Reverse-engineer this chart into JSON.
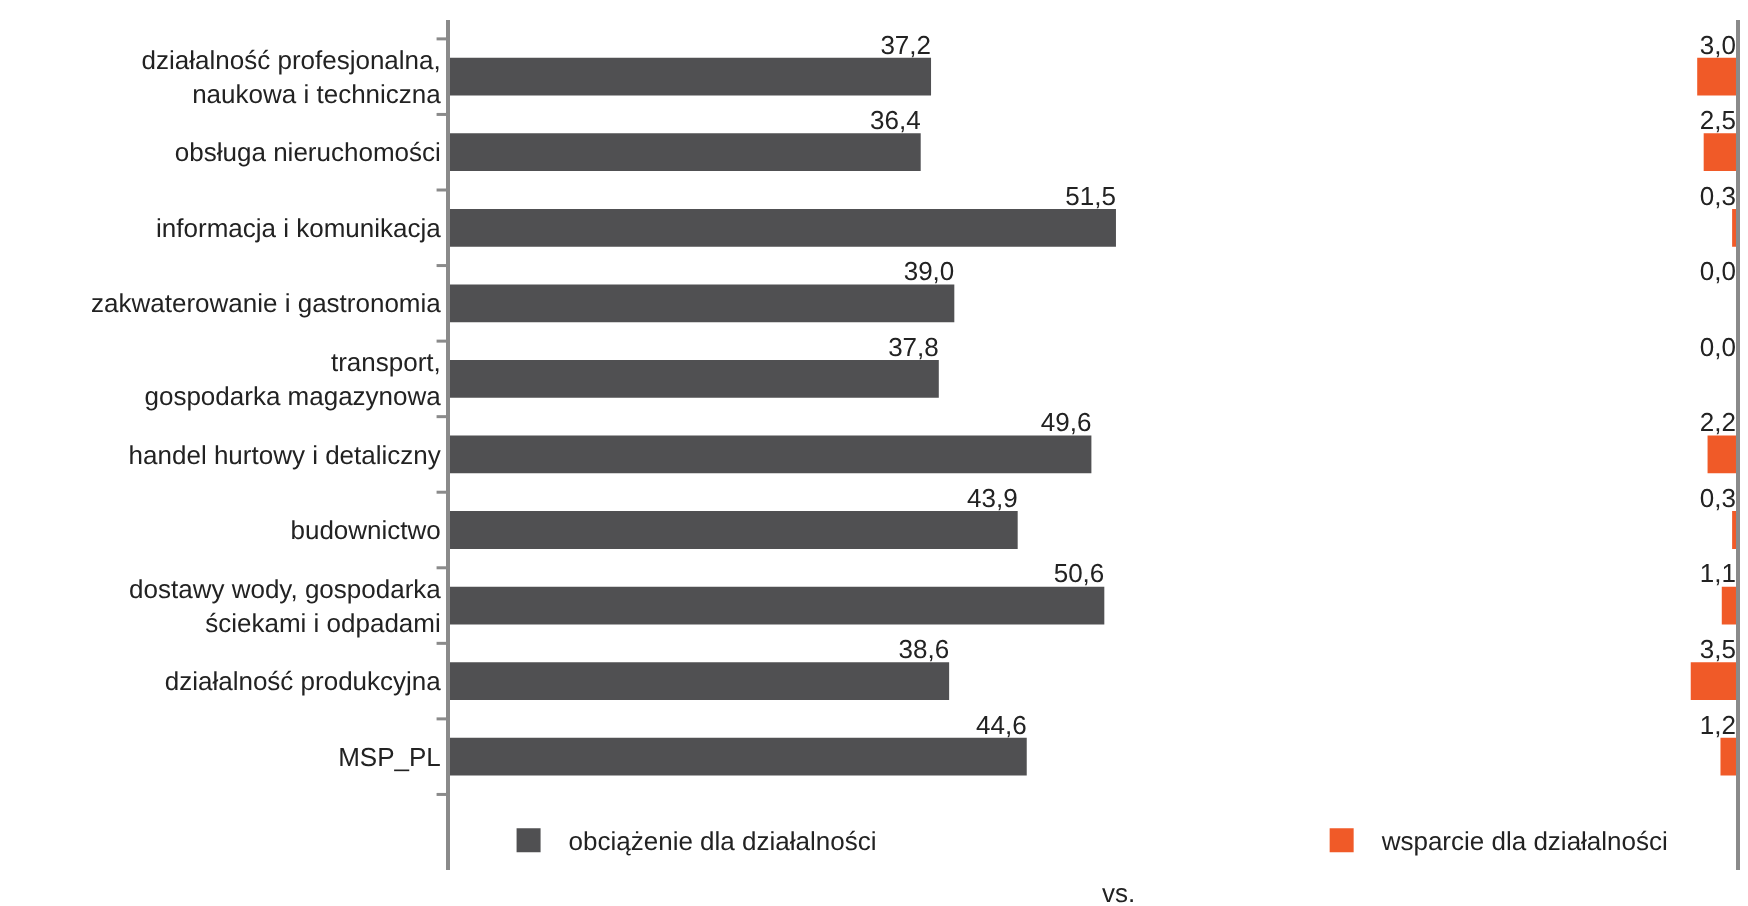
{
  "chart_data": [
    {
      "type": "bar",
      "orientation": "horizontal",
      "categories": [
        "działalność profesjonalna,\nnaukowa i techniczna",
        "obsługa nieruchomości",
        "informacja i komunikacja",
        "zakwaterowanie i gastronomia",
        "transport,\ngospodarka magazynowa",
        "handel hurtowy i detaliczny",
        "budownictwo",
        "dostawy wody, gospodarka\nściekami i odpadami",
        "działalność produkcyjna",
        "MSP_PL"
      ],
      "series": [
        {
          "name": "obciążenie dla działalności",
          "color": "#505052",
          "values": [
            37.2,
            36.4,
            51.5,
            39.0,
            37.8,
            49.6,
            43.9,
            50.6,
            38.6,
            44.6
          ],
          "value_labels": [
            "37,2",
            "36,4",
            "51,5",
            "39,0",
            "37,8",
            "49,6",
            "43,9",
            "50,6",
            "38,6",
            "44,6"
          ]
        }
      ],
      "tick_labels": "y",
      "legend": "bottom left",
      "annotations": [
        "vs."
      ]
    },
    {
      "type": "bar",
      "orientation": "horizontal",
      "categories": [
        null,
        null,
        null,
        null,
        null,
        null,
        null,
        null,
        null,
        null
      ],
      "series": [
        {
          "name": "wsparcie dla działalności",
          "color": "#f05a28",
          "values": [
            3.0,
            2.5,
            0.3,
            0.0,
            0.0,
            2.2,
            0.3,
            1.1,
            3.5,
            1.2
          ],
          "value_labels": [
            "3,0",
            "2,5",
            "0,3",
            "0,0",
            "0,0",
            "2,2",
            "0,3",
            "1,1",
            "3,5",
            "1,2"
          ]
        }
      ],
      "tick_labels": false,
      "legend": "bottom"
    }
  ]
}
